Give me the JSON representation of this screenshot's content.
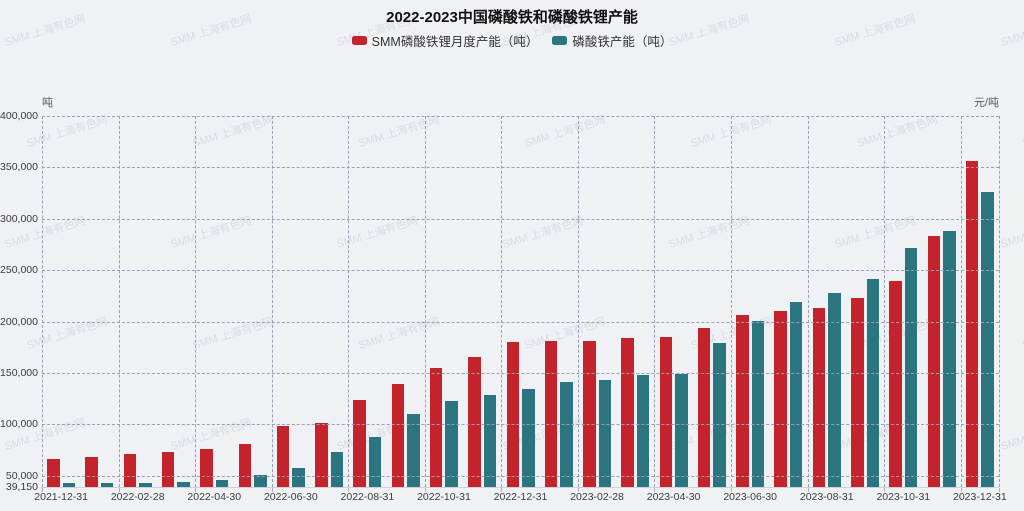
{
  "title": "2022-2023中国磷酸铁和磷酸铁锂产能",
  "watermark_text": "SMM 上海有色网",
  "legend": {
    "items": [
      {
        "id": "lfp",
        "label": "SMM磷酸铁锂月度产能（吨）",
        "color": "#c4232b"
      },
      {
        "id": "ip",
        "label": "磷酸铁产能（吨）",
        "color": "#2a7580"
      }
    ]
  },
  "axes": {
    "left_unit": "吨",
    "right_unit": "元/吨",
    "y_tick_values": [
      400000,
      350000,
      300000,
      250000,
      200000,
      150000,
      100000,
      50000,
      39150
    ],
    "x_tick_step": 2
  },
  "chart_data": {
    "type": "bar",
    "title": "2022-2023中国磷酸铁和磷酸铁锂产能",
    "xlabel": "",
    "ylabel": "吨",
    "y2label": "元/吨",
    "ylim": [
      39150,
      400000
    ],
    "grid": true,
    "legend_position": "top",
    "categories": [
      "2021-12-31",
      "2022-01-31",
      "2022-02-28",
      "2022-03-31",
      "2022-04-30",
      "2022-05-31",
      "2022-06-30",
      "2022-07-31",
      "2022-08-31",
      "2022-09-30",
      "2022-10-31",
      "2022-11-30",
      "2022-12-31",
      "2023-01-31",
      "2023-02-28",
      "2023-03-31",
      "2023-04-30",
      "2023-05-31",
      "2023-06-30",
      "2023-07-31",
      "2023-08-31",
      "2023-09-30",
      "2023-10-31",
      "2023-11-30",
      "2023-12-31"
    ],
    "series": [
      {
        "name": "SMM磷酸铁锂月度产能（吨）",
        "id": "lfp",
        "color": "#c4232b",
        "values": [
          66000,
          68000,
          71000,
          73000,
          76000,
          81000,
          98000,
          101000,
          124000,
          139000,
          155000,
          166000,
          180000,
          181000,
          181000,
          184000,
          185000,
          194000,
          206000,
          210000,
          213000,
          223000,
          240000,
          283000,
          356000
        ]
      },
      {
        "name": "磷酸铁产能（吨）",
        "id": "ip",
        "color": "#2a7580",
        "values": [
          43000,
          43000,
          43000,
          44000,
          46000,
          51000,
          58000,
          73000,
          88000,
          110000,
          123000,
          129000,
          134000,
          141000,
          143000,
          148000,
          149000,
          179000,
          201000,
          219000,
          228000,
          241000,
          272000,
          288000,
          326000
        ]
      }
    ]
  }
}
